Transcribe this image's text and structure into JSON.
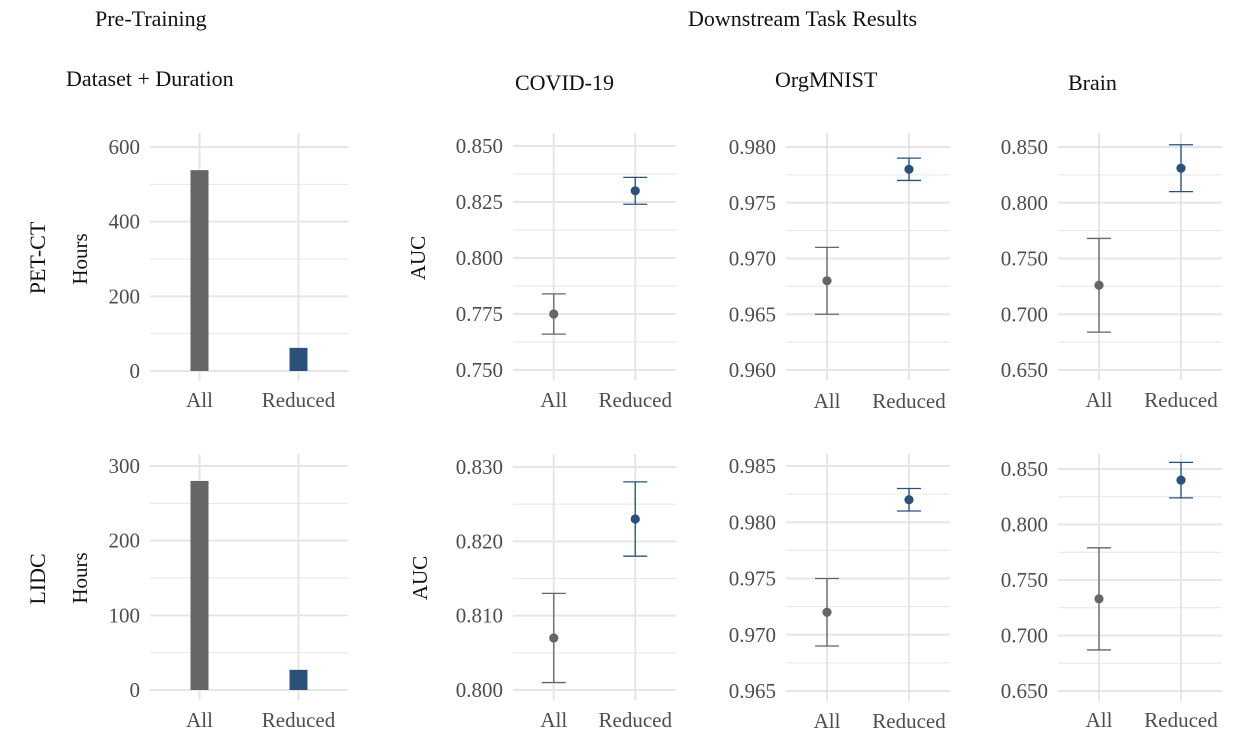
{
  "headers": {
    "pretraining": "Pre-Training",
    "downstream": "Downstream Task Results",
    "dataset_duration": "Dataset + Duration",
    "covid": "COVID-19",
    "orgmnist": "OrgMNIST",
    "brain": "Brain"
  },
  "rows": [
    "PET-CT",
    "LIDC"
  ],
  "colors": {
    "All": "#666666",
    "Reduced": "#2c5179",
    "grid": "#e6e6e6",
    "tick": "#4d4d4d"
  },
  "chart_data": [
    {
      "type": "bar",
      "row": "PET-CT",
      "panel": "pretrain",
      "title": "",
      "ylabel": "Hours",
      "categories": [
        "All",
        "Reduced"
      ],
      "values": [
        538,
        62
      ],
      "ylim": [
        0,
        600
      ],
      "yticks": [
        0,
        200,
        400,
        600
      ],
      "tick_labels": [
        "0",
        "200",
        "400",
        "600"
      ],
      "grid": true
    },
    {
      "type": "scatter",
      "row": "PET-CT",
      "panel": "covid",
      "title": "COVID-19",
      "ylabel": "AUC",
      "categories": [
        "All",
        "Reduced"
      ],
      "values": [
        0.775,
        0.83
      ],
      "lower": [
        0.766,
        0.824
      ],
      "upper": [
        0.784,
        0.836
      ],
      "ylim": [
        0.75,
        0.85
      ],
      "yticks": [
        0.75,
        0.775,
        0.8,
        0.825,
        0.85
      ],
      "tick_labels": [
        "0.750",
        "0.775",
        "0.800",
        "0.825",
        "0.850"
      ],
      "grid": true
    },
    {
      "type": "scatter",
      "row": "PET-CT",
      "panel": "orgmnist",
      "title": "OrgMNIST",
      "ylabel": "",
      "categories": [
        "All",
        "Reduced"
      ],
      "values": [
        0.968,
        0.978
      ],
      "lower": [
        0.965,
        0.977
      ],
      "upper": [
        0.971,
        0.979
      ],
      "ylim": [
        0.96,
        0.98
      ],
      "yticks": [
        0.96,
        0.965,
        0.97,
        0.975,
        0.98
      ],
      "tick_labels": [
        "0.960",
        "0.965",
        "0.970",
        "0.975",
        "0.980"
      ],
      "grid": true
    },
    {
      "type": "scatter",
      "row": "PET-CT",
      "panel": "brain",
      "title": "Brain",
      "ylabel": "",
      "categories": [
        "All",
        "Reduced"
      ],
      "values": [
        0.726,
        0.831
      ],
      "lower": [
        0.684,
        0.81
      ],
      "upper": [
        0.768,
        0.852
      ],
      "ylim": [
        0.65,
        0.85
      ],
      "yticks": [
        0.65,
        0.7,
        0.75,
        0.8,
        0.85
      ],
      "tick_labels": [
        "0.650",
        "0.700",
        "0.750",
        "0.800",
        "0.850"
      ],
      "grid": true
    },
    {
      "type": "bar",
      "row": "LIDC",
      "panel": "pretrain",
      "title": "",
      "ylabel": "Hours",
      "categories": [
        "All",
        "Reduced"
      ],
      "values": [
        280,
        27
      ],
      "ylim": [
        0,
        300
      ],
      "yticks": [
        0,
        100,
        200,
        300
      ],
      "tick_labels": [
        "0",
        "100",
        "200",
        "300"
      ],
      "grid": true
    },
    {
      "type": "scatter",
      "row": "LIDC",
      "panel": "covid",
      "title": "",
      "ylabel": "AUC",
      "categories": [
        "All",
        "Reduced"
      ],
      "values": [
        0.807,
        0.823
      ],
      "lower": [
        0.801,
        0.818
      ],
      "upper": [
        0.813,
        0.828
      ],
      "ylim": [
        0.8,
        0.83
      ],
      "yticks": [
        0.8,
        0.81,
        0.82,
        0.83
      ],
      "tick_labels": [
        "0.800",
        "0.810",
        "0.820",
        "0.830"
      ],
      "grid": true
    },
    {
      "type": "scatter",
      "row": "LIDC",
      "panel": "orgmnist",
      "title": "",
      "ylabel": "",
      "categories": [
        "All",
        "Reduced"
      ],
      "values": [
        0.972,
        0.982
      ],
      "lower": [
        0.969,
        0.981
      ],
      "upper": [
        0.975,
        0.983
      ],
      "ylim": [
        0.965,
        0.985
      ],
      "yticks": [
        0.965,
        0.97,
        0.975,
        0.98,
        0.985
      ],
      "tick_labels": [
        "0.965",
        "0.970",
        "0.975",
        "0.980",
        "0.985"
      ],
      "grid": true
    },
    {
      "type": "scatter",
      "row": "LIDC",
      "panel": "brain",
      "title": "",
      "ylabel": "",
      "categories": [
        "All",
        "Reduced"
      ],
      "values": [
        0.733,
        0.84
      ],
      "lower": [
        0.687,
        0.824
      ],
      "upper": [
        0.779,
        0.856
      ],
      "ylim": [
        0.65,
        0.85
      ],
      "yticks": [
        0.65,
        0.7,
        0.75,
        0.8,
        0.85
      ],
      "tick_labels": [
        "0.650",
        "0.700",
        "0.750",
        "0.800",
        "0.850"
      ],
      "grid": true
    }
  ]
}
